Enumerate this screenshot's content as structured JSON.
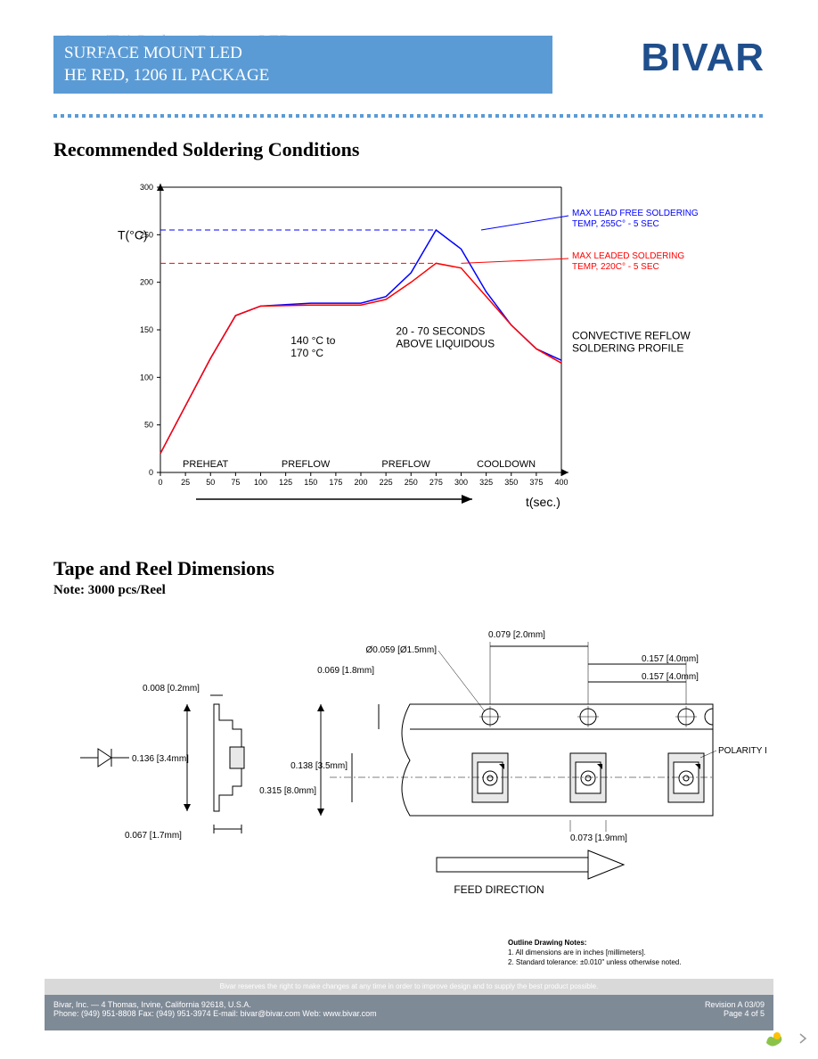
{
  "header": {
    "overlay_line1": "3mm (T1) Package Discrete LEDs",
    "overlay_line2": "AMBER",
    "white_line1": "SURFACE MOUNT LED",
    "white_line2": "HE RED, 1206 IL PACKAGE",
    "logo_text": "BIVAR"
  },
  "section1_title": "Recommended Soldering Conditions",
  "section2_title": "Tape and Reel Dimensions",
  "note_text": "Note: 3000 pcs/Reel",
  "chart": {
    "type": "line",
    "x_axis_label": "t(sec.)",
    "y_axis_label": "T(°C)",
    "xlim": [
      0,
      400
    ],
    "ylim": [
      0,
      300
    ],
    "xticks": [
      0,
      25,
      50,
      75,
      100,
      125,
      150,
      175,
      200,
      225,
      250,
      275,
      300,
      325,
      350,
      375,
      400
    ],
    "yticks": [
      0,
      50,
      100,
      150,
      200,
      250,
      300
    ],
    "axis_color": "#000000",
    "tick_fontsize": 9,
    "label_fontsize": 14,
    "series": [
      {
        "name": "leadfree",
        "color": "#0000ff",
        "dash_y": 255,
        "points": [
          [
            0,
            20
          ],
          [
            25,
            70
          ],
          [
            50,
            120
          ],
          [
            75,
            165
          ],
          [
            100,
            175
          ],
          [
            150,
            178
          ],
          [
            200,
            178
          ],
          [
            225,
            185
          ],
          [
            250,
            210
          ],
          [
            275,
            255
          ],
          [
            300,
            235
          ],
          [
            325,
            190
          ],
          [
            350,
            155
          ],
          [
            375,
            130
          ],
          [
            400,
            118
          ]
        ]
      },
      {
        "name": "leaded",
        "color": "#ff0000",
        "dash_y": 220,
        "points": [
          [
            0,
            20
          ],
          [
            25,
            70
          ],
          [
            50,
            120
          ],
          [
            75,
            165
          ],
          [
            100,
            175
          ],
          [
            150,
            176
          ],
          [
            200,
            176
          ],
          [
            225,
            182
          ],
          [
            250,
            200
          ],
          [
            275,
            220
          ],
          [
            300,
            215
          ],
          [
            325,
            185
          ],
          [
            350,
            155
          ],
          [
            375,
            130
          ],
          [
            400,
            115
          ]
        ]
      }
    ],
    "phase_labels": [
      "PREHEAT",
      "PREFLOW",
      "PREFLOW",
      "COOLDOWN"
    ],
    "phase_x": [
      45,
      145,
      245,
      345
    ],
    "annotations": {
      "temp_range": "140 °C to\n170 °C",
      "liquidous": "20 - 70 SECONDS\nABOVE LIQUIDOUS",
      "right1": "MAX LEAD FREE SOLDERING\nTEMP, 255C° - 5 SEC",
      "right1_color": "#0000ff",
      "right2": "MAX LEADED SOLDERING\nTEMP, 220C° - 5 SEC",
      "right2_color": "#ff0000",
      "profile": "CONVECTIVE REFLOW\nSOLDERING PROFILE"
    }
  },
  "drawing": {
    "dims": {
      "d1": "0.008 [0.2mm]",
      "d2": "0.136 [3.4mm]",
      "d3": "0.067 [1.7mm]",
      "d4": "0.069 [1.8mm]",
      "d5": "Ø0.059 [Ø1.5mm]",
      "d6": "0.079 [2.0mm]",
      "d7": "0.157 [4.0mm]",
      "d8": "0.157 [4.0mm]",
      "d9": "0.138 [3.5mm]",
      "d10": "0.315 [8.0mm]",
      "d11": "0.073 [1.9mm]",
      "polarity": "POLARITY ID",
      "feed": "FEED DIRECTION"
    },
    "line_color": "#000000",
    "fill_color": "#e8e8e8",
    "dim_fontsize": 10
  },
  "outline_notes": {
    "title": "Outline Drawing Notes:",
    "n1": "1. All dimensions are in inches [millimeters].",
    "n2": "2. Standard tolerance: ±0.010\" unless otherwise noted."
  },
  "footer": {
    "disclaimer": "Bivar reserves the right to make changes at any time in order to improve design and to supply the best product possible.",
    "addr": "Bivar, Inc. — 4 Thomas, Irvine, California 92618, U.S.A.",
    "contact": "Phone: (949) 951-8808   Fax: (949) 951-3974   E-mail: bivar@bivar.com   Web: www.bivar.com",
    "rev": "Revision A   03/09",
    "page": "Page 4 of 5"
  }
}
